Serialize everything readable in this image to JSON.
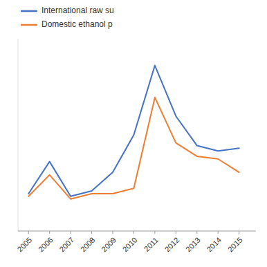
{
  "chart_data": {
    "type": "line",
    "x": [
      2005,
      2006,
      2007,
      2008,
      2009,
      2010,
      2011,
      2012,
      2013,
      2014,
      2015
    ],
    "series": [
      {
        "name": "International raw su",
        "color": "#4472C4",
        "values": [
          0.14,
          0.26,
          0.13,
          0.15,
          0.22,
          0.36,
          0.62,
          0.43,
          0.32,
          0.3,
          0.31
        ]
      },
      {
        "name": "Domestic ethanol p",
        "color": "#ED7D31",
        "values": [
          0.13,
          0.21,
          0.12,
          0.14,
          0.14,
          0.16,
          0.5,
          0.33,
          0.28,
          0.27,
          0.22
        ]
      }
    ],
    "xlim": [
      2004.5,
      2015.8
    ],
    "xticks": [
      2005,
      2006,
      2007,
      2008,
      2009,
      2010,
      2011,
      2012,
      2013,
      2014,
      2015
    ],
    "ylim": [
      0,
      0.72
    ],
    "tick_labels": "x",
    "grid": false,
    "legend": "top"
  }
}
